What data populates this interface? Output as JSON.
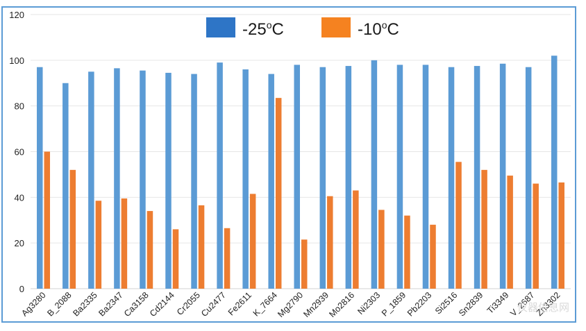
{
  "chart_data": {
    "type": "bar",
    "title": "",
    "xlabel": "",
    "ylabel": "",
    "ylim": [
      0,
      120
    ],
    "yticks": [
      0,
      20,
      40,
      60,
      80,
      100,
      120
    ],
    "grid": true,
    "legend_position": "top-center",
    "categories": [
      "Ag3280",
      "B_2088",
      "Ba2335",
      "Ba2347",
      "Ca3158",
      "Cd2144",
      "Cr2055",
      "Cu2477",
      "Fe2611",
      "K_7664",
      "Mg2790",
      "Mn2939",
      "Mo2816",
      "Ni2303",
      "P_1859",
      "Pb2203",
      "Si2516",
      "Sn2839",
      "Ti3349",
      "V_2687",
      "Zn3302"
    ],
    "series": [
      {
        "name": "-25oC",
        "legend_main": "-25",
        "legend_sup": "o",
        "legend_unit": "C",
        "color": "#5b9bd5",
        "legend_color": "#2e75c6",
        "values": [
          97,
          90,
          95,
          96.5,
          95.5,
          94.5,
          94,
          99,
          96,
          94,
          98,
          97,
          97.5,
          100,
          98,
          98,
          97,
          97.5,
          98.5,
          97,
          102
        ]
      },
      {
        "name": "-10oC",
        "legend_main": "-10",
        "legend_sup": "o",
        "legend_unit": "C",
        "color": "#ed7d31",
        "legend_color": "#f58220",
        "values": [
          60,
          52,
          38.5,
          39.5,
          34,
          26,
          36.5,
          26.5,
          41.5,
          83.5,
          21.5,
          40.5,
          43,
          34.5,
          32,
          28,
          55.5,
          52,
          49.5,
          46,
          46.5
        ]
      }
    ]
  },
  "watermark": "仪器信息网"
}
